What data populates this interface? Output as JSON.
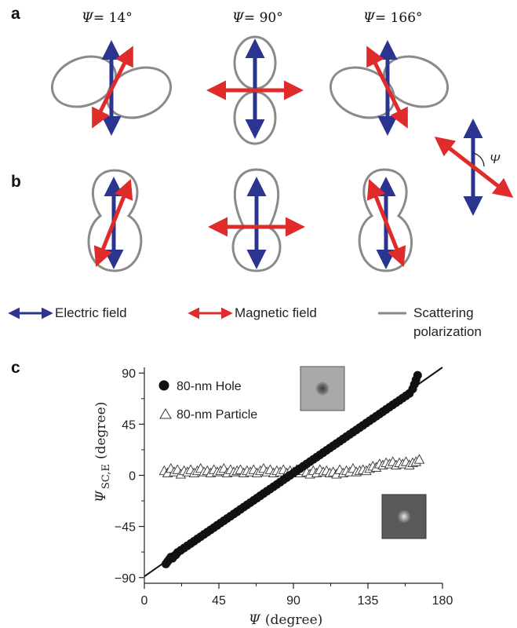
{
  "figure": {
    "panel_labels": {
      "a": "a",
      "b": "b",
      "c": "c"
    },
    "psi_symbol": "Ψ",
    "angle_labels": [
      "= 14°",
      "= 90°",
      "= 166°"
    ],
    "inset_angle_label": "Ψ",
    "legend": {
      "electric": "Electric field",
      "magnetic": "Magnetic field",
      "scattering_line1": "Scattering",
      "scattering_line2": "polarization"
    },
    "colors": {
      "electric": "#2b3590",
      "magnetic": "#e02b2b",
      "pattern": "#8a8a8a"
    }
  },
  "chart_data": {
    "type": "scatter",
    "xlabel_symbol": "Ψ",
    "xlabel_unit": "(degree)",
    "ylabel_symbol": "Ψ",
    "ylabel_subscript": "SC,E",
    "ylabel_unit": "(degree)",
    "xlim": [
      0,
      180
    ],
    "ylim": [
      -95,
      95
    ],
    "xticks": [
      0,
      45,
      90,
      135,
      180
    ],
    "yticks": [
      -90,
      -45,
      0,
      45,
      90
    ],
    "series": [
      {
        "name": "80-nm Hole",
        "marker": "filled-circle",
        "points": [
          [
            13,
            -78
          ],
          [
            14,
            -76
          ],
          [
            15,
            -74
          ],
          [
            16,
            -72
          ],
          [
            17,
            -73
          ],
          [
            18,
            -71
          ],
          [
            19,
            -70
          ],
          [
            20,
            -68
          ],
          [
            22,
            -66
          ],
          [
            24,
            -64
          ],
          [
            26,
            -62
          ],
          [
            28,
            -60
          ],
          [
            30,
            -58
          ],
          [
            32,
            -56
          ],
          [
            34,
            -54
          ],
          [
            36,
            -52
          ],
          [
            38,
            -50
          ],
          [
            40,
            -48
          ],
          [
            42,
            -46
          ],
          [
            44,
            -44
          ],
          [
            46,
            -42
          ],
          [
            48,
            -40
          ],
          [
            50,
            -38
          ],
          [
            52,
            -36
          ],
          [
            54,
            -34
          ],
          [
            56,
            -32
          ],
          [
            58,
            -30
          ],
          [
            60,
            -28
          ],
          [
            62,
            -26
          ],
          [
            64,
            -24
          ],
          [
            66,
            -22
          ],
          [
            68,
            -20
          ],
          [
            70,
            -18
          ],
          [
            72,
            -16
          ],
          [
            74,
            -14
          ],
          [
            76,
            -12
          ],
          [
            78,
            -10
          ],
          [
            80,
            -8
          ],
          [
            82,
            -6
          ],
          [
            84,
            -4
          ],
          [
            86,
            -2
          ],
          [
            88,
            0
          ],
          [
            90,
            2
          ],
          [
            92,
            4
          ],
          [
            94,
            6
          ],
          [
            96,
            8
          ],
          [
            98,
            10
          ],
          [
            100,
            12
          ],
          [
            102,
            14
          ],
          [
            104,
            16
          ],
          [
            106,
            18
          ],
          [
            108,
            20
          ],
          [
            110,
            22
          ],
          [
            112,
            24
          ],
          [
            114,
            26
          ],
          [
            116,
            28
          ],
          [
            118,
            30
          ],
          [
            120,
            32
          ],
          [
            122,
            34
          ],
          [
            124,
            36
          ],
          [
            126,
            38
          ],
          [
            128,
            40
          ],
          [
            130,
            42
          ],
          [
            132,
            44
          ],
          [
            134,
            46
          ],
          [
            136,
            48
          ],
          [
            138,
            50
          ],
          [
            140,
            52
          ],
          [
            142,
            54
          ],
          [
            144,
            56
          ],
          [
            146,
            58
          ],
          [
            148,
            60
          ],
          [
            150,
            62
          ],
          [
            152,
            64
          ],
          [
            154,
            66
          ],
          [
            156,
            68
          ],
          [
            158,
            70
          ],
          [
            160,
            72
          ],
          [
            162,
            76
          ],
          [
            163,
            80
          ],
          [
            164,
            84
          ],
          [
            165,
            88
          ]
        ]
      },
      {
        "name": "80-nm Particle",
        "marker": "open-triangle",
        "points": [
          [
            12,
            4
          ],
          [
            14,
            2
          ],
          [
            16,
            6
          ],
          [
            18,
            3
          ],
          [
            20,
            5
          ],
          [
            22,
            1
          ],
          [
            24,
            4
          ],
          [
            26,
            3
          ],
          [
            28,
            5
          ],
          [
            30,
            2
          ],
          [
            32,
            4
          ],
          [
            34,
            6
          ],
          [
            36,
            3
          ],
          [
            38,
            4
          ],
          [
            40,
            2
          ],
          [
            42,
            5
          ],
          [
            44,
            3
          ],
          [
            46,
            4
          ],
          [
            48,
            6
          ],
          [
            50,
            2
          ],
          [
            52,
            5
          ],
          [
            54,
            3
          ],
          [
            56,
            4
          ],
          [
            58,
            5
          ],
          [
            60,
            2
          ],
          [
            62,
            4
          ],
          [
            64,
            3
          ],
          [
            66,
            5
          ],
          [
            68,
            2
          ],
          [
            70,
            4
          ],
          [
            72,
            6
          ],
          [
            74,
            3
          ],
          [
            76,
            5
          ],
          [
            78,
            2
          ],
          [
            80,
            4
          ],
          [
            82,
            3
          ],
          [
            84,
            5
          ],
          [
            86,
            2
          ],
          [
            88,
            4
          ],
          [
            90,
            3
          ],
          [
            92,
            5
          ],
          [
            94,
            2
          ],
          [
            96,
            4
          ],
          [
            98,
            3
          ],
          [
            100,
            1
          ],
          [
            102,
            4
          ],
          [
            104,
            2
          ],
          [
            106,
            5
          ],
          [
            108,
            3
          ],
          [
            110,
            4
          ],
          [
            112,
            2
          ],
          [
            114,
            3
          ],
          [
            116,
            1
          ],
          [
            118,
            5
          ],
          [
            120,
            2
          ],
          [
            122,
            4
          ],
          [
            124,
            3
          ],
          [
            126,
            6
          ],
          [
            128,
            3
          ],
          [
            130,
            4
          ],
          [
            132,
            5
          ],
          [
            134,
            4
          ],
          [
            136,
            6
          ],
          [
            138,
            8
          ],
          [
            140,
            7
          ],
          [
            142,
            10
          ],
          [
            144,
            9
          ],
          [
            146,
            11
          ],
          [
            148,
            10
          ],
          [
            150,
            12
          ],
          [
            152,
            9
          ],
          [
            154,
            11
          ],
          [
            156,
            10
          ],
          [
            158,
            12
          ],
          [
            160,
            9
          ],
          [
            162,
            11
          ],
          [
            164,
            12
          ],
          [
            166,
            14
          ]
        ]
      }
    ],
    "fit_line": {
      "x": [
        0,
        180
      ],
      "y": [
        -89,
        101
      ]
    }
  }
}
